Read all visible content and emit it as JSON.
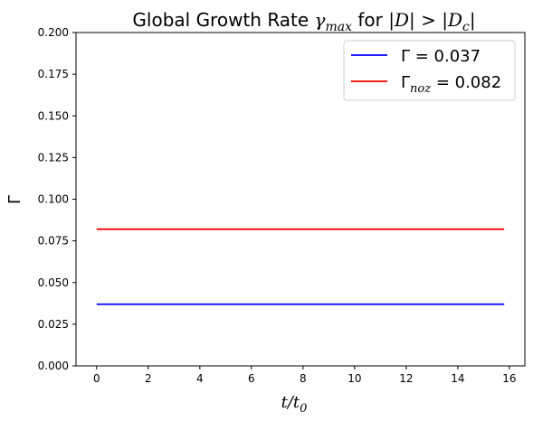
{
  "chart_data": {
    "type": "line",
    "title": {
      "prefix": "Global Growth Rate ",
      "math_base": "γ",
      "math_sub": "max",
      "connector": " for ",
      "condition": "|D| > |D",
      "condition_sub": "c",
      "condition_end": "|"
    },
    "xlabel": {
      "base": "t/t",
      "sub": "0"
    },
    "ylabel": "Γ",
    "xlim": [
      -0.8,
      16.6
    ],
    "ylim": [
      0.0,
      0.2
    ],
    "xticks": [
      0,
      2,
      4,
      6,
      8,
      10,
      12,
      14,
      16
    ],
    "xtick_labels": [
      "0",
      "2",
      "4",
      "6",
      "8",
      "10",
      "12",
      "14",
      "16"
    ],
    "yticks": [
      0.0,
      0.025,
      0.05,
      0.075,
      0.1,
      0.125,
      0.15,
      0.175,
      0.2
    ],
    "ytick_labels": [
      "0.000",
      "0.025",
      "0.050",
      "0.075",
      "0.100",
      "0.125",
      "0.150",
      "0.175",
      "0.200"
    ],
    "grid": false,
    "legend_position": "top-right",
    "series": [
      {
        "name": "Γ = 0.037",
        "legend_base": "Γ",
        "legend_sub": "",
        "legend_value": " = 0.037",
        "color": "#0000ff",
        "x": [
          0,
          15.8
        ],
        "y": [
          0.037,
          0.037
        ]
      },
      {
        "name": "Γnoz = 0.082",
        "legend_base": "Γ",
        "legend_sub": "noz",
        "legend_value": " = 0.082",
        "color": "#ff0000",
        "x": [
          0,
          15.8
        ],
        "y": [
          0.082,
          0.082
        ]
      }
    ]
  }
}
